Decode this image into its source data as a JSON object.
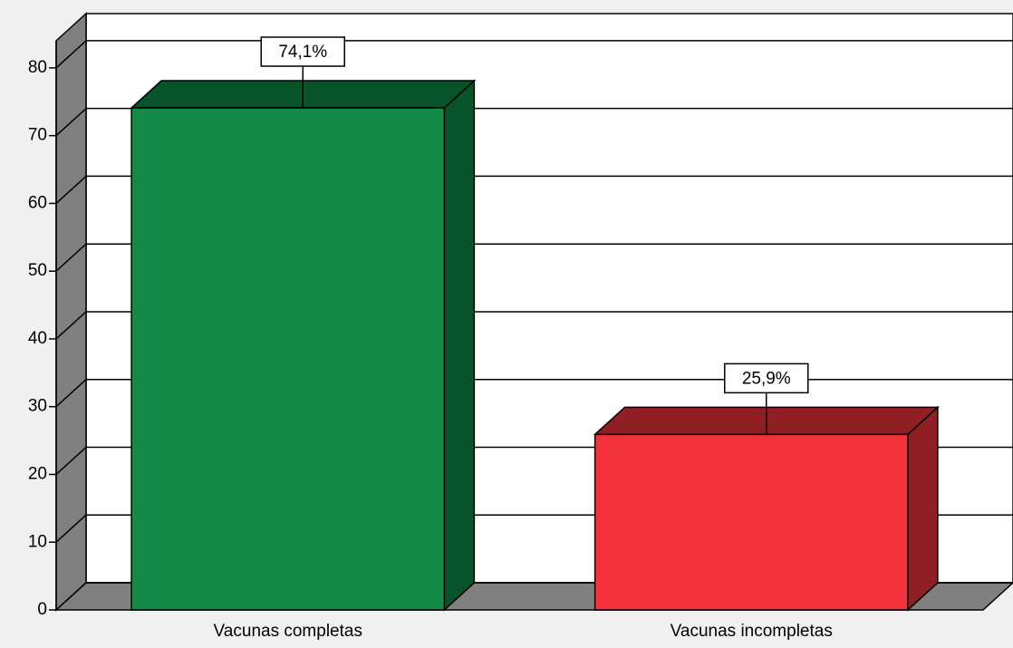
{
  "chart_data": {
    "type": "bar3d",
    "categories": [
      "Vacunas completas",
      "Vacunas incompletas"
    ],
    "values": [
      74.1,
      25.9
    ],
    "value_labels": [
      "74,1%",
      "25,9%"
    ],
    "colors": [
      "#118b47",
      "#f2323a"
    ],
    "side_colors": [
      "#07542b",
      "#8f1f23"
    ],
    "ylim": [
      0,
      84
    ],
    "yticks": [
      0,
      10,
      20,
      30,
      40,
      50,
      60,
      70,
      80
    ],
    "grid": true
  }
}
